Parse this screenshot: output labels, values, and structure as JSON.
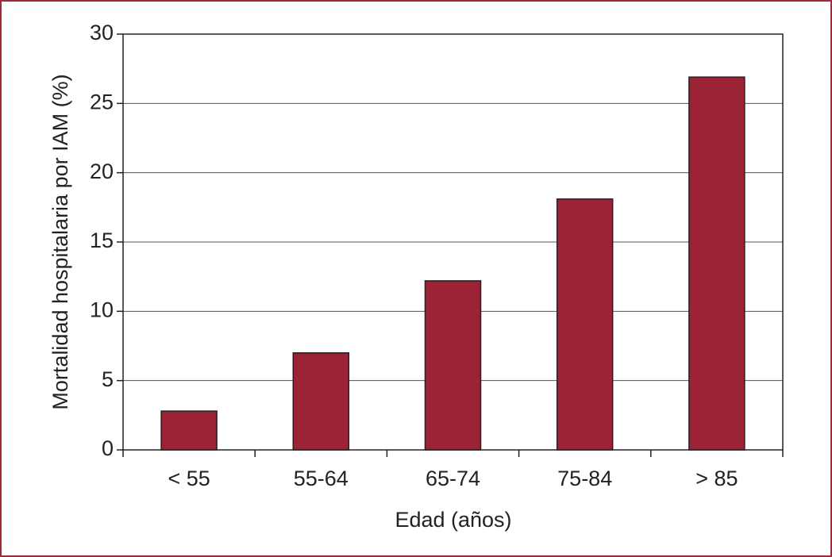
{
  "chart_data": {
    "type": "bar",
    "x_label": "Edad (años)",
    "y_label": "Mortalidad hospitalaria por IAM (%)",
    "categories": [
      "< 55",
      "55-64",
      "65-74",
      "75-84",
      "> 85"
    ],
    "values": [
      2.8,
      7,
      12.2,
      18.1,
      26.9
    ],
    "color": "#9b2335",
    "ylim": [
      0,
      30
    ],
    "yticks": [
      0,
      5,
      10,
      15,
      20,
      25,
      30
    ],
    "grid": true
  }
}
